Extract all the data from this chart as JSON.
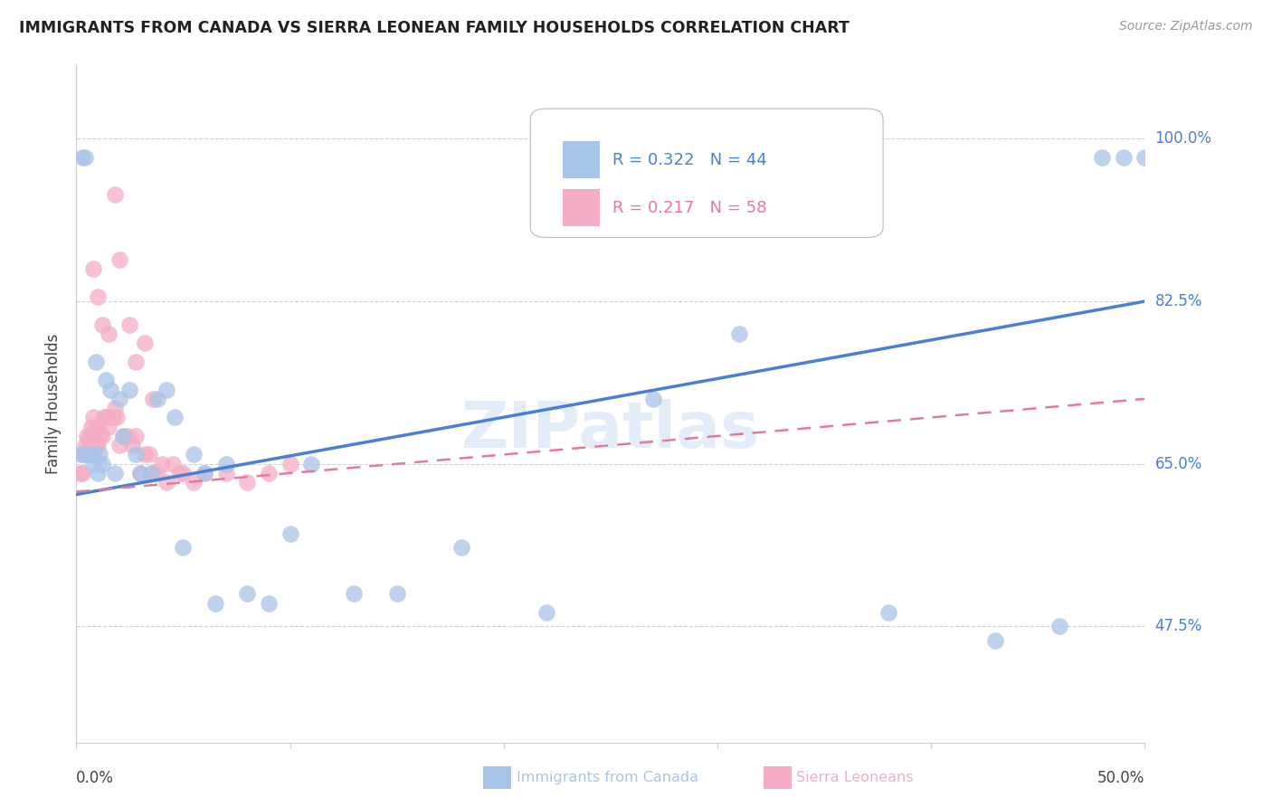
{
  "title": "IMMIGRANTS FROM CANADA VS SIERRA LEONEAN FAMILY HOUSEHOLDS CORRELATION CHART",
  "source": "Source: ZipAtlas.com",
  "ylabel": "Family Households",
  "ytick_labels": [
    "100.0%",
    "82.5%",
    "65.0%",
    "47.5%"
  ],
  "ytick_values": [
    1.0,
    0.825,
    0.65,
    0.475
  ],
  "xlim": [
    0.0,
    0.5
  ],
  "ylim": [
    0.35,
    1.08
  ],
  "color_blue": "#a8c4e8",
  "color_pink": "#f4adc4",
  "line_blue": "#4a7fd4",
  "line_pink": "#e87898",
  "background": "#ffffff",
  "grid_color": "#d0d0d0",
  "canada_x": [
    0.002,
    0.003,
    0.004,
    0.005,
    0.006,
    0.007,
    0.008,
    0.009,
    0.01,
    0.011,
    0.012,
    0.014,
    0.016,
    0.018,
    0.02,
    0.022,
    0.025,
    0.028,
    0.03,
    0.035,
    0.038,
    0.042,
    0.046,
    0.05,
    0.055,
    0.06,
    0.065,
    0.07,
    0.08,
    0.09,
    0.1,
    0.11,
    0.13,
    0.15,
    0.18,
    0.22,
    0.27,
    0.31,
    0.38,
    0.43,
    0.46,
    0.48,
    0.49,
    0.5
  ],
  "canada_y": [
    0.66,
    0.98,
    0.98,
    0.66,
    0.66,
    0.66,
    0.65,
    0.76,
    0.64,
    0.66,
    0.65,
    0.74,
    0.73,
    0.64,
    0.72,
    0.68,
    0.73,
    0.66,
    0.64,
    0.64,
    0.72,
    0.73,
    0.7,
    0.56,
    0.66,
    0.64,
    0.5,
    0.65,
    0.51,
    0.5,
    0.575,
    0.65,
    0.51,
    0.51,
    0.56,
    0.49,
    0.72,
    0.79,
    0.49,
    0.46,
    0.475,
    0.98,
    0.98,
    0.98
  ],
  "sierra_x": [
    0.002,
    0.003,
    0.003,
    0.004,
    0.004,
    0.005,
    0.005,
    0.006,
    0.006,
    0.007,
    0.007,
    0.008,
    0.008,
    0.008,
    0.009,
    0.009,
    0.01,
    0.01,
    0.011,
    0.012,
    0.013,
    0.014,
    0.015,
    0.016,
    0.017,
    0.018,
    0.019,
    0.02,
    0.022,
    0.024,
    0.026,
    0.028,
    0.03,
    0.032,
    0.034,
    0.036,
    0.038,
    0.04,
    0.042,
    0.045,
    0.048,
    0.05,
    0.055,
    0.06,
    0.07,
    0.08,
    0.09,
    0.1,
    0.018,
    0.02,
    0.025,
    0.028,
    0.032,
    0.036,
    0.015,
    0.012,
    0.01,
    0.008
  ],
  "sierra_y": [
    0.64,
    0.64,
    0.66,
    0.66,
    0.67,
    0.66,
    0.68,
    0.67,
    0.68,
    0.67,
    0.69,
    0.66,
    0.68,
    0.7,
    0.67,
    0.69,
    0.67,
    0.69,
    0.68,
    0.68,
    0.7,
    0.7,
    0.69,
    0.7,
    0.7,
    0.71,
    0.7,
    0.67,
    0.68,
    0.68,
    0.67,
    0.68,
    0.64,
    0.66,
    0.66,
    0.64,
    0.64,
    0.65,
    0.63,
    0.65,
    0.64,
    0.64,
    0.63,
    0.64,
    0.64,
    0.63,
    0.64,
    0.65,
    0.94,
    0.87,
    0.8,
    0.76,
    0.78,
    0.72,
    0.79,
    0.8,
    0.83,
    0.86
  ],
  "canada_regline_x": [
    0.0,
    0.5
  ],
  "canada_regline_y": [
    0.617,
    0.825
  ],
  "sierra_regline_x": [
    0.0,
    0.5
  ],
  "sierra_regline_y": [
    0.62,
    0.72
  ]
}
